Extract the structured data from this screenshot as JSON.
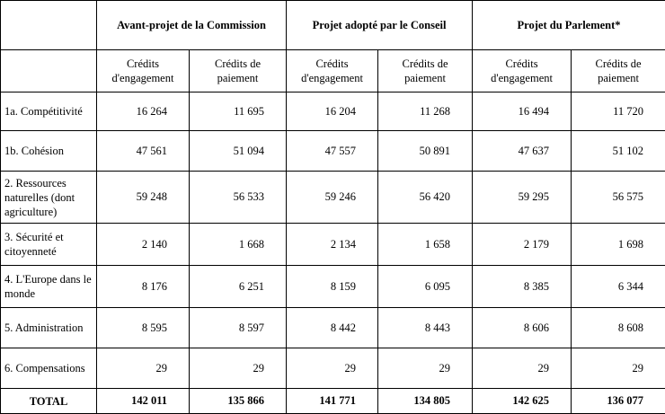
{
  "table": {
    "groups": [
      "Avant-projet de la Commission",
      "Projet adopté par le Conseil",
      "Projet du Parlement*"
    ],
    "subheaders": [
      "Crédits d'engagement",
      "Crédits de paiement",
      "Crédits d'engagement",
      "Crédits de paiement",
      "Crédits d'engagement",
      "Crédits de paiement"
    ],
    "rows": [
      [
        "1a. Compétitivité",
        "16 264",
        "11 695",
        "16 204",
        "11 268",
        "16 494",
        "11 720"
      ],
      [
        "1b. Cohésion",
        "47 561",
        "51 094",
        "47 557",
        "50 891",
        "47 637",
        "51 102"
      ],
      [
        "2. Ressources naturelles (dont agriculture)",
        "59 248",
        "56 533",
        "59 246",
        "56 420",
        "59 295",
        "56 575"
      ],
      [
        "3. Sécurité et citoyenneté",
        "2 140",
        "1 668",
        "2 134",
        "1 658",
        "2 179",
        "1 698"
      ],
      [
        "4. L'Europe dans le monde",
        "8 176",
        "6 251",
        "8 159",
        "6 095",
        "8 385",
        "6 344"
      ],
      [
        "5. Administration",
        "8 595",
        "8 597",
        "8 442",
        "8 443",
        "8 606",
        "8 608"
      ],
      [
        "6. Compensations",
        "29",
        "29",
        "29",
        "29",
        "29",
        "29"
      ]
    ],
    "total": [
      "TOTAL",
      "142 011",
      "135 866",
      "141 771",
      "134 805",
      "142 625",
      "136 077"
    ]
  }
}
